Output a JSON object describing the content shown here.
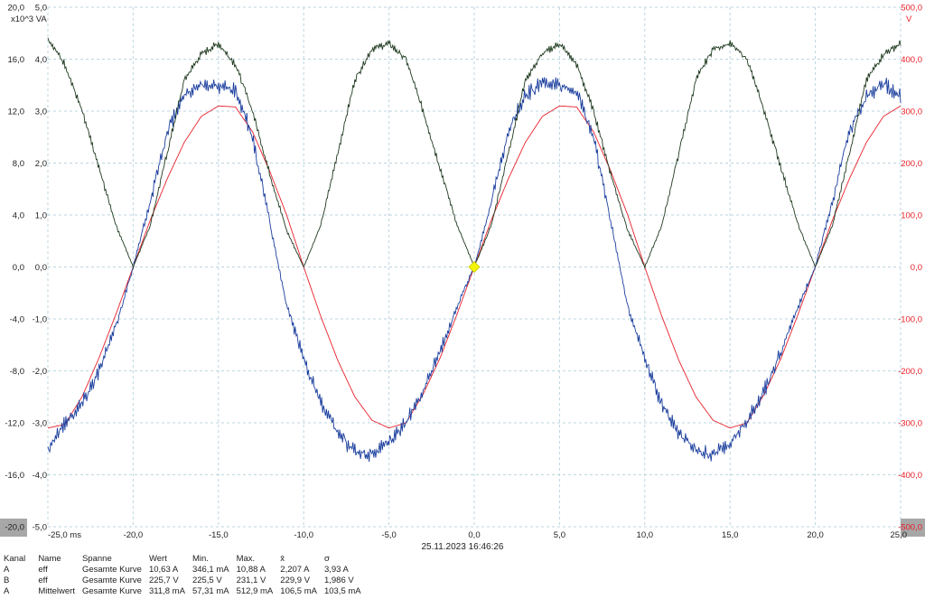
{
  "chart_data": {
    "type": "line",
    "x_label_unit": "ms",
    "x_ticks": [
      "-25,0 ms",
      "-20,0",
      "-15,0",
      "-10,0",
      "-5,0",
      "0,0",
      "5,0",
      "10,0",
      "15,0",
      "20,0",
      "25,0"
    ],
    "xlim": [
      -25,
      25
    ],
    "left_axis_outer": {
      "ticks": [
        "20,0",
        "16,0",
        "12,0",
        "8,0",
        "4,0",
        "0,0",
        "-4,0",
        "-8,0",
        "-12,0",
        "-16,0",
        "-20,0"
      ],
      "ylim": [
        -20,
        20
      ]
    },
    "left_axis_inner": {
      "unit": "x10^3 VA",
      "ticks": [
        "5,0",
        "4,0",
        "3,0",
        "2,0",
        "1,0",
        "0,0",
        "-1,0",
        "-2,0",
        "-3,0",
        "-4,0",
        "-5,0"
      ],
      "ylim": [
        -5,
        5
      ]
    },
    "right_axis": {
      "unit": "V",
      "ticks": [
        "500,0",
        "400,0",
        "300,0",
        "200,0",
        "100,0",
        "0,0",
        "-100,0",
        "-200,0",
        "-300,0",
        "-400,0",
        "-500,0"
      ],
      "ylim": [
        -500,
        500
      ]
    },
    "series": [
      {
        "axis": "right",
        "color": "#e8202a",
        "noise": 0.015,
        "x": [
          -25,
          -24,
          -23,
          -22,
          -21,
          -20,
          -19,
          -18,
          -17,
          -16,
          -15,
          -14,
          -13,
          -12,
          -11,
          -10,
          -9,
          -8,
          -7,
          -6,
          -5,
          -4,
          -3,
          -2,
          -1,
          0,
          1,
          2,
          3,
          4,
          5,
          6,
          7,
          8,
          9,
          10,
          11,
          12,
          13,
          14,
          15,
          16,
          17,
          18,
          19,
          20,
          21,
          22,
          23,
          24,
          25
        ],
        "y": [
          -310,
          -303,
          -250,
          -175,
          -90,
          0,
          90,
          170,
          240,
          290,
          310,
          308,
          260,
          185,
          100,
          0,
          -95,
          -180,
          -250,
          -295,
          -310,
          -300,
          -245,
          -175,
          -90,
          0,
          90,
          170,
          240,
          290,
          310,
          308,
          260,
          185,
          100,
          0,
          -95,
          -180,
          -250,
          -295,
          -310,
          -300,
          -245,
          -175,
          -90,
          0,
          90,
          170,
          240,
          290,
          310
        ]
      },
      {
        "axis": "left_outer",
        "color": "#1b3f9e",
        "noise": 0.35,
        "x": [
          -25,
          -24,
          -23,
          -22,
          -21,
          -20,
          -19,
          -18,
          -17,
          -16,
          -15,
          -14,
          -13,
          -12,
          -11,
          -10,
          -9,
          -8,
          -7,
          -6,
          -5,
          -4,
          -3,
          -2,
          -1,
          0,
          1,
          2,
          3,
          4,
          5,
          6,
          7,
          8,
          9,
          10,
          11,
          12,
          13,
          14,
          15,
          16,
          17,
          18,
          19,
          20,
          21,
          22,
          23,
          24,
          25
        ],
        "y": [
          -14,
          -12,
          -10.5,
          -8,
          -4.5,
          0,
          5,
          10.5,
          13.2,
          14.2,
          14,
          13.5,
          10,
          3.5,
          -3,
          -7,
          -10.5,
          -12.8,
          -14.2,
          -14.5,
          -13.5,
          -12,
          -9.5,
          -6.5,
          -3,
          0,
          5,
          10.5,
          13.2,
          14.2,
          14,
          13.5,
          10,
          3.5,
          -3,
          -7,
          -10.5,
          -12.8,
          -14.2,
          -14.5,
          -13.5,
          -12,
          -9.5,
          -6.5,
          -3,
          0,
          5,
          10.5,
          13.2,
          14.2,
          13
        ]
      },
      {
        "axis": "left_inner",
        "color": "#1f3a1f",
        "noise": 0.04,
        "x": [
          -25,
          -24,
          -23,
          -22,
          -21,
          -20,
          -19,
          -18,
          -17,
          -16,
          -15,
          -14,
          -13,
          -12,
          -11,
          -10,
          -9,
          -8,
          -7,
          -6,
          -5,
          -4,
          -3,
          -2,
          -1,
          0,
          1,
          2,
          3,
          4,
          5,
          6,
          7,
          8,
          9,
          10,
          11,
          12,
          13,
          14,
          15,
          16,
          17,
          18,
          19,
          20,
          21,
          22,
          23,
          24,
          25
        ],
        "y": [
          4.4,
          3.9,
          3.0,
          1.9,
          0.8,
          0.0,
          0.8,
          2.2,
          3.6,
          4.1,
          4.3,
          3.9,
          3.0,
          1.8,
          0.7,
          0.0,
          0.8,
          2.2,
          3.6,
          4.2,
          4.3,
          4.0,
          3.0,
          1.9,
          0.8,
          0.0,
          0.8,
          2.2,
          3.6,
          4.1,
          4.3,
          3.9,
          3.0,
          1.8,
          0.7,
          0.0,
          0.8,
          2.2,
          3.6,
          4.2,
          4.3,
          4.0,
          3.0,
          1.9,
          0.8,
          0.0,
          0.8,
          2.2,
          3.6,
          4.1,
          4.3
        ]
      }
    ],
    "cursor_marker": {
      "x": 0,
      "y": 0,
      "color": "#f4f400"
    },
    "grid": true
  },
  "footer": {
    "timestamp": "25.11.2023 16:46:26",
    "stats_header": [
      "Kanal",
      "Name",
      "Spanne",
      "Wert",
      "Min.",
      "Max.",
      "x̄",
      "σ"
    ],
    "stats_rows": [
      [
        "A",
        "eff",
        "Gesamte Kurve",
        "10,63 A",
        "346,1 mA",
        "10,88 A",
        "2,207 A",
        "3,93 A"
      ],
      [
        "B",
        "eff",
        "Gesamte Kurve",
        "225,7 V",
        "225,5 V",
        "231,1 V",
        "229,9 V",
        "1,986 V"
      ],
      [
        "A",
        "Mittelwert",
        "Gesamte Kurve",
        "311,8 mA",
        "57,31 mA",
        "512,9 mA",
        "106,5 mA",
        "103,5 mA"
      ]
    ]
  }
}
